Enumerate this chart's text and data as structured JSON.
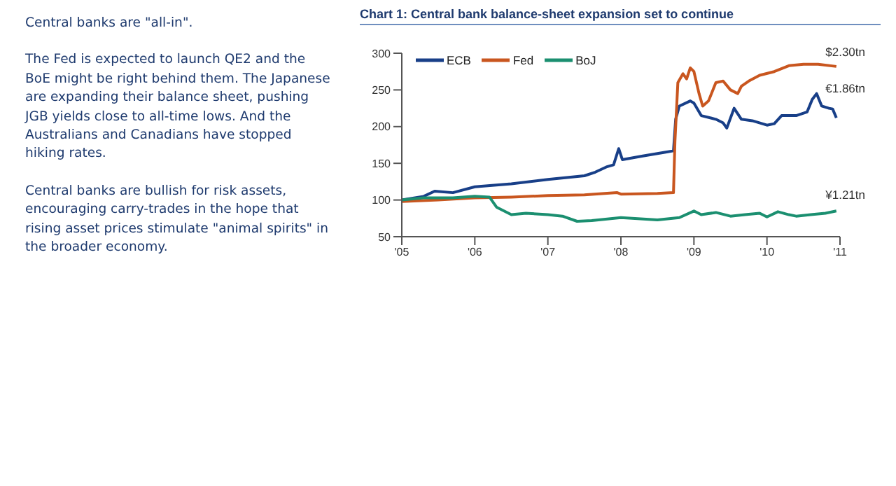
{
  "chart_data": {
    "type": "line",
    "title": "Chart 1: Central bank balance-sheet expansion set to continue",
    "annotations": [
      "Central banks are \"all-in\".",
      "The Fed is expected to launch QE2 and the BoE might be right behind them. The Japanese are expanding their balance sheet, pushing JGB yields close to all-time lows. And the Australians and Canadians have stopped hiking rates.",
      "Central banks are bullish for risk assets, encouraging carry-trades in the hope that rising asset prices stimulate \"animal spirits\" in the broader economy.",
      "$2.30tn",
      "€1.86tn",
      "¥1.21tn"
    ],
    "xlim": [
      2005,
      2011
    ],
    "xticks": [
      {
        "value": 2005,
        "label": "'05"
      },
      {
        "value": 2006,
        "label": "'06"
      },
      {
        "value": 2007,
        "label": "'07"
      },
      {
        "value": 2008,
        "label": "'08"
      },
      {
        "value": 2009,
        "label": "'09"
      },
      {
        "value": 2010,
        "label": "'10"
      },
      {
        "value": 2011,
        "label": "'11"
      }
    ],
    "ylim": [
      50,
      300
    ],
    "yticks": [
      50,
      100,
      150,
      200,
      250,
      300
    ],
    "grid": false,
    "legend": "top left",
    "marker": "none",
    "line_style": "solid",
    "series": [
      {
        "name": "ECB",
        "color": "#183f88",
        "x": [
          2005.0,
          2005.3,
          2005.45,
          2005.7,
          2006.0,
          2006.5,
          2007.0,
          2007.5,
          2007.65,
          2007.8,
          2007.9,
          2007.97,
          2008.02,
          2008.3,
          2008.6,
          2008.72,
          2008.75,
          2008.8,
          2008.95,
          2009.0,
          2009.1,
          2009.3,
          2009.4,
          2009.45,
          2009.55,
          2009.65,
          2009.8,
          2010.0,
          2010.1,
          2010.2,
          2010.4,
          2010.55,
          2010.62,
          2010.68,
          2010.75,
          2010.85,
          2010.9,
          2010.95
        ],
        "values": [
          100,
          105,
          112,
          110,
          118,
          122,
          128,
          133,
          138,
          145,
          148,
          170,
          155,
          160,
          165,
          167,
          210,
          228,
          235,
          232,
          215,
          210,
          205,
          198,
          225,
          210,
          208,
          202,
          204,
          215,
          215,
          220,
          237,
          245,
          228,
          225,
          224,
          212
        ]
      },
      {
        "name": "Fed",
        "color": "#c9561f",
        "x": [
          2005.0,
          2005.5,
          2006.0,
          2006.5,
          2007.0,
          2007.5,
          2007.95,
          2008.0,
          2008.5,
          2008.72,
          2008.74,
          2008.78,
          2008.85,
          2008.9,
          2008.95,
          2009.0,
          2009.07,
          2009.12,
          2009.2,
          2009.3,
          2009.4,
          2009.5,
          2009.6,
          2009.65,
          2009.75,
          2009.9,
          2010.1,
          2010.3,
          2010.5,
          2010.7,
          2010.95
        ],
        "values": [
          98,
          100,
          103,
          104,
          106,
          107,
          110,
          108,
          109,
          110,
          180,
          260,
          272,
          265,
          280,
          275,
          245,
          228,
          235,
          260,
          262,
          250,
          245,
          255,
          262,
          270,
          275,
          283,
          285,
          285,
          282
        ]
      },
      {
        "name": "BoJ",
        "color": "#1b8f70",
        "x": [
          2005.0,
          2005.3,
          2005.7,
          2006.0,
          2006.2,
          2006.3,
          2006.5,
          2006.7,
          2007.0,
          2007.2,
          2007.4,
          2007.6,
          2008.0,
          2008.5,
          2008.8,
          2009.0,
          2009.1,
          2009.3,
          2009.5,
          2009.7,
          2009.9,
          2010.0,
          2010.15,
          2010.3,
          2010.4,
          2010.6,
          2010.8,
          2010.95
        ],
        "values": [
          100,
          103,
          103,
          105,
          104,
          90,
          80,
          82,
          80,
          78,
          71,
          72,
          76,
          73,
          76,
          85,
          80,
          83,
          78,
          80,
          82,
          77,
          84,
          80,
          78,
          80,
          82,
          85
        ]
      }
    ]
  }
}
